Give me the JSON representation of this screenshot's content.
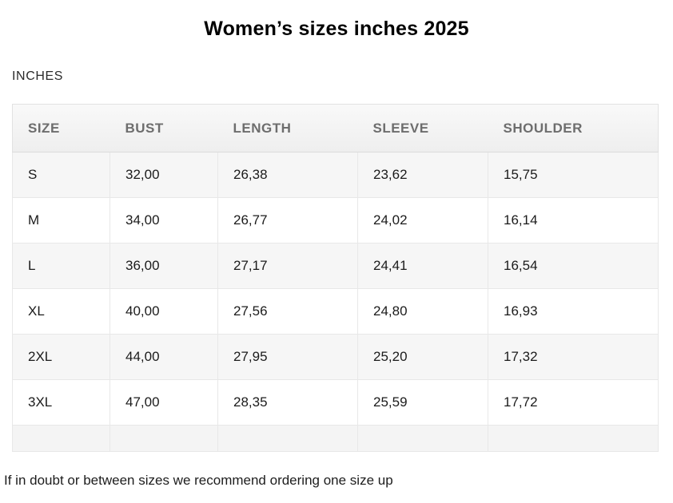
{
  "page": {
    "title": "Women’s sizes inches 2025",
    "unit_label": "INCHES",
    "footnote": "If in doubt or between sizes we recommend ordering one size up"
  },
  "table": {
    "columns": [
      "SIZE",
      "BUST",
      "LENGTH",
      "SLEEVE",
      "SHOULDER"
    ],
    "rows": [
      [
        "S",
        "32,00",
        "26,38",
        "23,62",
        "15,75"
      ],
      [
        "M",
        "34,00",
        "26,77",
        "24,02",
        "16,14"
      ],
      [
        "L",
        "36,00",
        "27,17",
        "24,41",
        "16,54"
      ],
      [
        "XL",
        "40,00",
        "27,56",
        "24,80",
        "16,93"
      ],
      [
        "2XL",
        "44,00",
        "27,95",
        "25,20",
        "17,32"
      ],
      [
        "3XL",
        "47,00",
        "28,35",
        "25,59",
        "17,72"
      ]
    ],
    "has_empty_trailing_row": true
  },
  "colors": {
    "header_text": "#6d6d6d",
    "body_text": "#1b1b1b",
    "row_stripe": "#f6f6f6",
    "header_background": "#f2f2f2",
    "border": "#e2e2e2",
    "page_background": "#ffffff"
  }
}
